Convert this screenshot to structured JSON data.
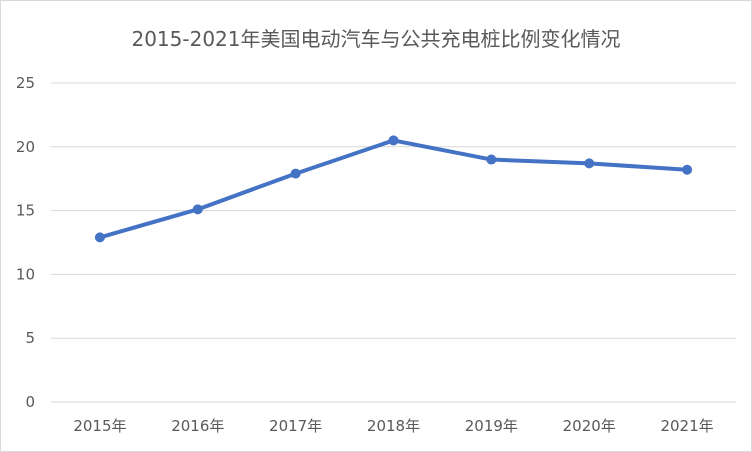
{
  "chart_data": {
    "type": "line",
    "title": "2015-2021年美国电动汽车与公共充电桩比例变化情况",
    "categories": [
      "2015年",
      "2016年",
      "2017年",
      "2018年",
      "2019年",
      "2020年",
      "2021年"
    ],
    "series": [
      {
        "values": [
          12.9,
          15.1,
          17.9,
          20.5,
          19.0,
          18.7,
          18.2
        ]
      }
    ],
    "yticks": [
      0,
      5,
      10,
      15,
      20,
      25
    ],
    "ylim": [
      0,
      25
    ],
    "xlabel": "",
    "ylabel": "",
    "grid": true,
    "legend": "none",
    "colors": {
      "series": "#4472c4",
      "grid": "#d9d9d9",
      "text": "#595959"
    }
  }
}
